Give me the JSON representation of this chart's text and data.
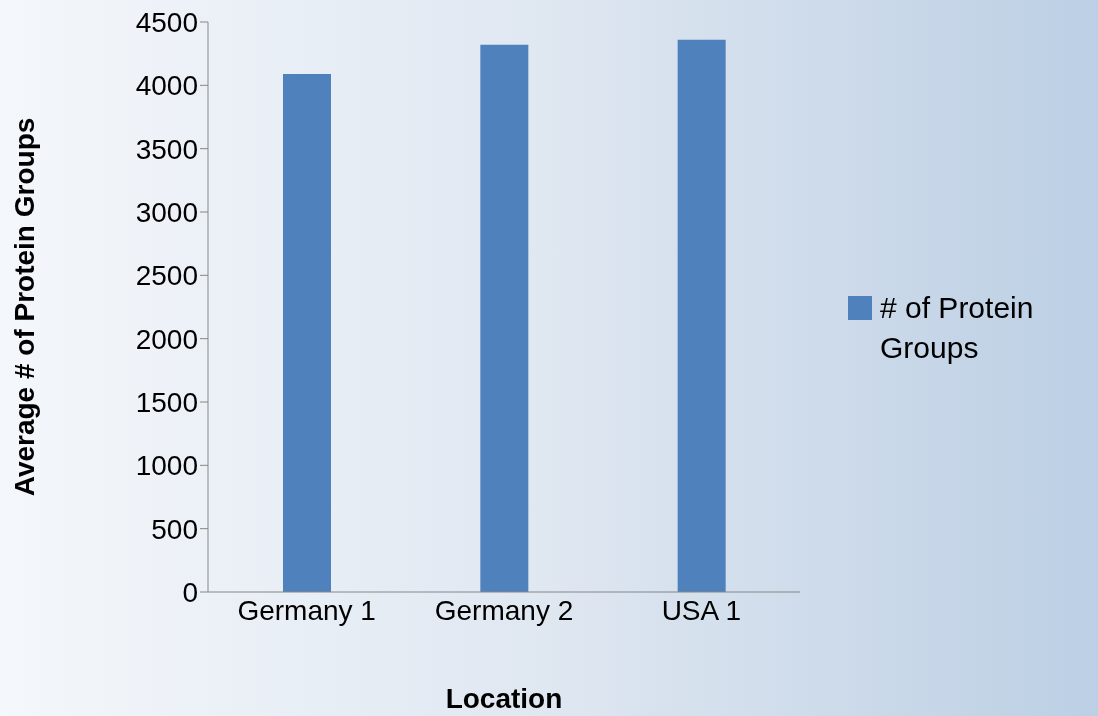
{
  "chart_data": {
    "type": "bar",
    "xlabel": "Location",
    "ylabel": "Average # of Protein Groups",
    "categories": [
      "Germany 1",
      "Germany 2",
      "USA 1"
    ],
    "series": [
      {
        "name": "# of Protein Groups",
        "color": "#4f81bd",
        "values": [
          4090,
          4320,
          4360
        ]
      }
    ],
    "ylim": [
      0,
      4500
    ],
    "yticks": [
      0,
      500,
      1000,
      1500,
      2000,
      2500,
      3000,
      3500,
      4000,
      4500
    ],
    "grid": false,
    "legend": "right"
  }
}
